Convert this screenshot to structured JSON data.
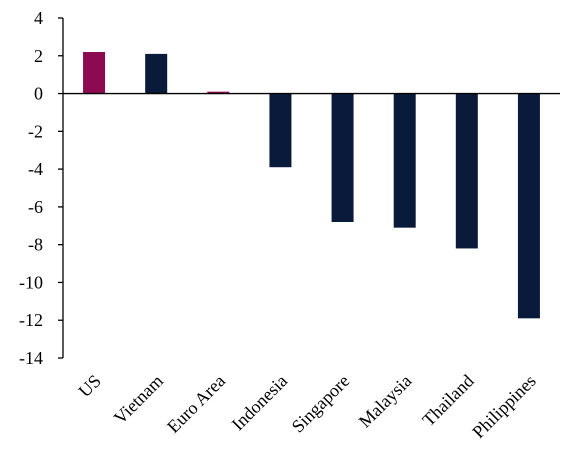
{
  "chart_data": {
    "type": "bar",
    "title": "",
    "xlabel": "",
    "ylabel": "",
    "categories": [
      "US",
      "Vietnam",
      "Euro Area",
      "Indonesia",
      "Singapore",
      "Malaysia",
      "Thailand",
      "Philippines"
    ],
    "values": [
      2.2,
      2.1,
      0.1,
      -3.9,
      -6.8,
      -7.1,
      -8.2,
      -11.9
    ],
    "bar_colors": [
      "#8b0a50",
      "#0a1a3a",
      "#8b0a50",
      "#0a1a3a",
      "#0a1a3a",
      "#0a1a3a",
      "#0a1a3a",
      "#0a1a3a"
    ],
    "ylim": [
      -14,
      4
    ],
    "yticks": [
      4,
      2,
      0,
      -2,
      -4,
      -6,
      -8,
      -10,
      -12,
      -14
    ],
    "grid": false,
    "legend": "none"
  }
}
